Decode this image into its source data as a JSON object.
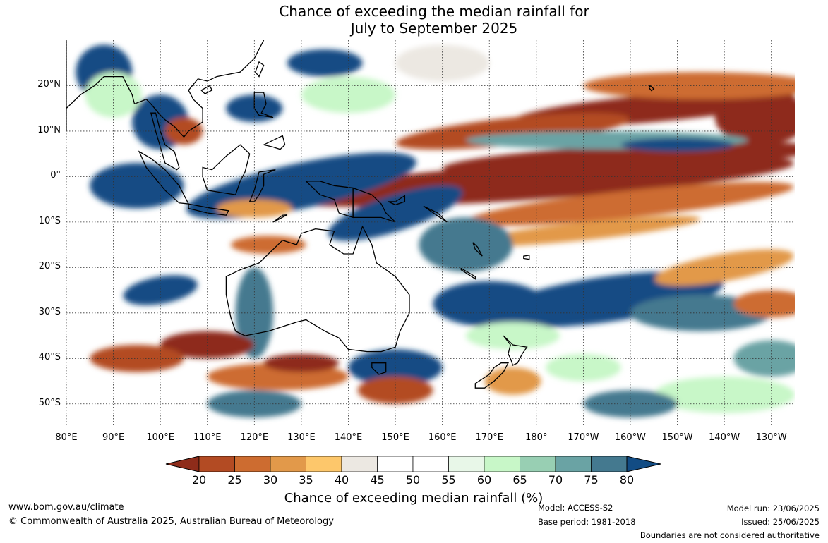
{
  "title": {
    "line1": "Chance of exceeding the median rainfall for",
    "line2": "July to September 2025"
  },
  "lat_labels": [
    "20°N",
    "10°N",
    "0°",
    "10°S",
    "20°S",
    "30°S",
    "40°S",
    "50°S"
  ],
  "lon_labels": [
    "80°E",
    "90°E",
    "100°E",
    "110°E",
    "120°E",
    "130°E",
    "140°E",
    "150°E",
    "160°E",
    "170°E",
    "180°",
    "170°W",
    "160°W",
    "150°W",
    "140°W",
    "130°W"
  ],
  "colorbar": {
    "title": "Chance of exceeding median rainfall (%)",
    "ticks": [
      "20",
      "25",
      "30",
      "35",
      "40",
      "45",
      "50",
      "55",
      "60",
      "65",
      "70",
      "75",
      "80"
    ],
    "colors": [
      "#8e2c1a",
      "#b34b23",
      "#cd6c30",
      "#e2994a",
      "#fdc76b",
      "#ece8e2",
      "#ffffff",
      "#ffffff",
      "#e8f7e8",
      "#c8f7c8",
      "#98cfb3",
      "#6aa3a4",
      "#44798f",
      "#124c84"
    ]
  },
  "footer": {
    "website": "www.bom.gov.au/climate",
    "copyright": "© Commonwealth of Australia 2025, Australian Bureau of Meteorology",
    "model": "Model: ACCESS-S2",
    "base_period": "Base period: 1981-2018",
    "model_run": "Model run: 23/06/2025",
    "issued": "Issued: 25/06/2025",
    "disclaimer": "Boundaries are not considered authoritative"
  }
}
